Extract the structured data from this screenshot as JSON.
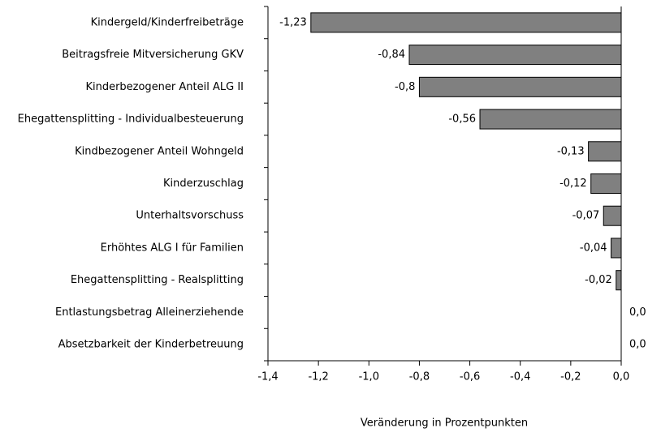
{
  "chart_data": {
    "type": "bar",
    "orientation": "horizontal",
    "x_label": "Veränderung in Prozentpunkten",
    "categories": [
      "Kindergeld/Kinderfreibeträge",
      "Beitragsfreie Mitversicherung GKV",
      "Kinderbezogener Anteil ALG II",
      "Ehegattensplitting  - Individualbesteuerung",
      "Kindbezogener Anteil Wohngeld",
      "Kinderzuschlag",
      "Unterhaltsvorschuss",
      "Erhöhtes ALG I für Familien",
      "Ehegattensplitting - Realsplitting",
      "Entlastungsbetrag Alleinerziehende",
      "Absetzbarkeit der Kinderbetreuung"
    ],
    "values": [
      -1.23,
      -0.84,
      -0.8,
      -0.56,
      -0.13,
      -0.12,
      -0.07,
      -0.04,
      -0.02,
      0,
      0
    ],
    "value_labels": [
      "-1,23",
      "-0,84",
      "-0,8",
      "-0,56",
      "-0,13",
      "-0,12",
      "-0,07",
      "-0,04",
      "-0,02",
      "0,0",
      "0,0"
    ],
    "color": "#808080",
    "xlim": [
      -1.4,
      0
    ],
    "xticks": [
      {
        "value": -1.4,
        "label": "-1,4"
      },
      {
        "value": -1.2,
        "label": "-1,2"
      },
      {
        "value": -1.0,
        "label": "-1,0"
      },
      {
        "value": -0.8,
        "label": "-0,8"
      },
      {
        "value": -0.6,
        "label": "-0,6"
      },
      {
        "value": -0.4,
        "label": "-0,4"
      },
      {
        "value": -0.2,
        "label": "-0,2"
      },
      {
        "value": 0,
        "label": "0,0"
      }
    ],
    "grid": false
  }
}
